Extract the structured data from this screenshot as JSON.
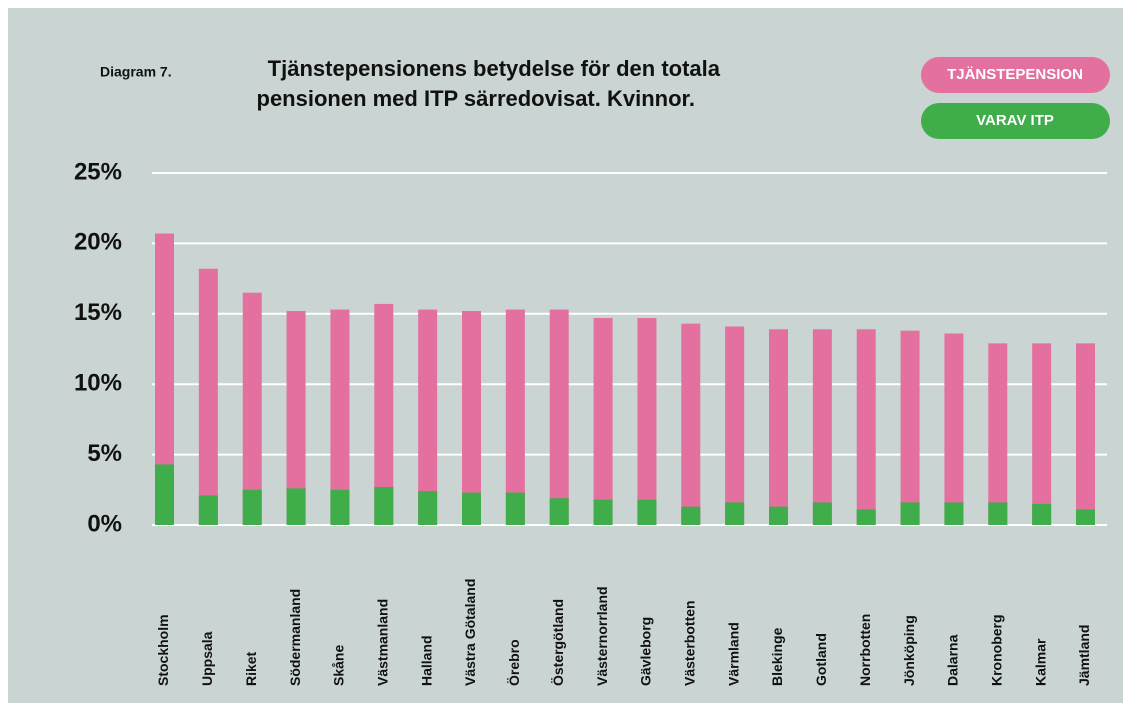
{
  "chart_data": {
    "type": "bar",
    "label": "Diagram 7.",
    "title_lines": [
      "Tjänstepensionens betydelse för den totala",
      "pensionen med ITP särredovisat. Kvinnor."
    ],
    "categories": [
      "Stockholm",
      "Uppsala",
      "Riket",
      "Södermanland",
      "Skåne",
      "Västmanland",
      "Halland",
      "Västra Götaland",
      "Örebro",
      "Östergötland",
      "Västernorrland",
      "Gävleborg",
      "Västerbotten",
      "Värmland",
      "Blekinge",
      "Gotland",
      "Norrbotten",
      "Jönköping",
      "Dalarna",
      "Kronoberg",
      "Kalmar",
      "Jämtland"
    ],
    "series": [
      {
        "name": "TJÄNSTEPENSION",
        "color": "#e3709f",
        "values": [
          20.7,
          18.2,
          16.5,
          15.2,
          15.3,
          15.7,
          15.3,
          15.2,
          15.3,
          15.3,
          14.7,
          14.7,
          14.3,
          14.1,
          13.9,
          13.9,
          13.9,
          13.8,
          13.6,
          12.9,
          12.9,
          12.9
        ]
      },
      {
        "name": "VARAV ITP",
        "color": "#3fae4a",
        "values": [
          4.3,
          2.1,
          2.5,
          2.6,
          2.5,
          2.7,
          2.4,
          2.3,
          2.3,
          1.9,
          1.8,
          1.8,
          1.3,
          1.6,
          1.3,
          1.6,
          1.1,
          1.6,
          1.6,
          1.6,
          1.5,
          1.1
        ]
      }
    ],
    "ylim": [
      0,
      25
    ],
    "yticks": [
      {
        "value": 0,
        "label": "0%"
      },
      {
        "value": 5,
        "label": "5%"
      },
      {
        "value": 10,
        "label": "10%"
      },
      {
        "value": 15,
        "label": "15%"
      },
      {
        "value": 20,
        "label": "20%"
      },
      {
        "value": 25,
        "label": "25%"
      }
    ],
    "grid": true,
    "legend": "top-right"
  }
}
